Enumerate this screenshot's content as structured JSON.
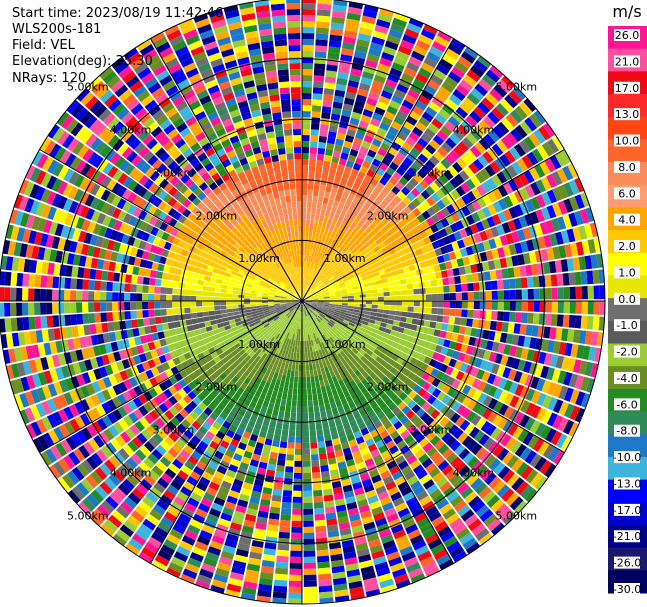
{
  "header": {
    "start_time": "Start time: 2023/08/19 11:42:46",
    "instrument": "WLS200s-181",
    "field": "Field: VEL",
    "elevation": "Elevation(deg): 35.30",
    "nrays": "NRays: 120"
  },
  "colorbar": {
    "unit": "m/s",
    "ticks": [
      "26.0",
      "21.0",
      "17.0",
      "13.0",
      "10.0",
      "8.0",
      "6.0",
      "4.0",
      "2.0",
      "1.0",
      "0.0",
      "-1.0",
      "-2.0",
      "-4.0",
      "-6.0",
      "-8.0",
      "-10.0",
      "-13.0",
      "-17.0",
      "-21.0",
      "-26.0",
      "-30.0"
    ],
    "colors": [
      "#ff1493",
      "#ff50a0",
      "#f00a14",
      "#ff2828",
      "#ff4612",
      "#ff6428",
      "#fa8c5a",
      "#ff9b6e",
      "#ffa500",
      "#ffc800",
      "#ffff00",
      "#e6e600",
      "#6e6e6e",
      "#5a5a5a",
      "#9acd32",
      "#6b8e23",
      "#228b22",
      "#2e8b57",
      "#1e78c8",
      "#3cb4dc",
      "#0000ff",
      "#0000cd",
      "#00008b",
      "#191970",
      "#000060"
    ]
  },
  "chart_data": {
    "type": "ppi",
    "field": "VEL",
    "units": "m/s",
    "nrays": 120,
    "elevation_deg": 35.3,
    "range_rings_km": [
      1.0,
      2.0,
      3.0,
      4.0,
      5.0
    ],
    "range_ring_labels": [
      "1.00km",
      "2.00km",
      "3.00km",
      "4.00km",
      "5.00km"
    ],
    "valid_range_km": 2.3,
    "max_range_km": 5.0,
    "summary": [
      {
        "sector": "north (far)",
        "velocity_ms": 8.0
      },
      {
        "sector": "north (mid)",
        "velocity_ms": 4.0
      },
      {
        "sector": "north (near)",
        "velocity_ms": 2.0
      },
      {
        "sector": "east-west strip",
        "velocity_ms": 0.0
      },
      {
        "sector": "south (near)",
        "velocity_ms": -2.0
      },
      {
        "sector": "south (mid)",
        "velocity_ms": -6.0
      },
      {
        "sector": "south (far)",
        "velocity_ms": -10.0
      }
    ]
  }
}
